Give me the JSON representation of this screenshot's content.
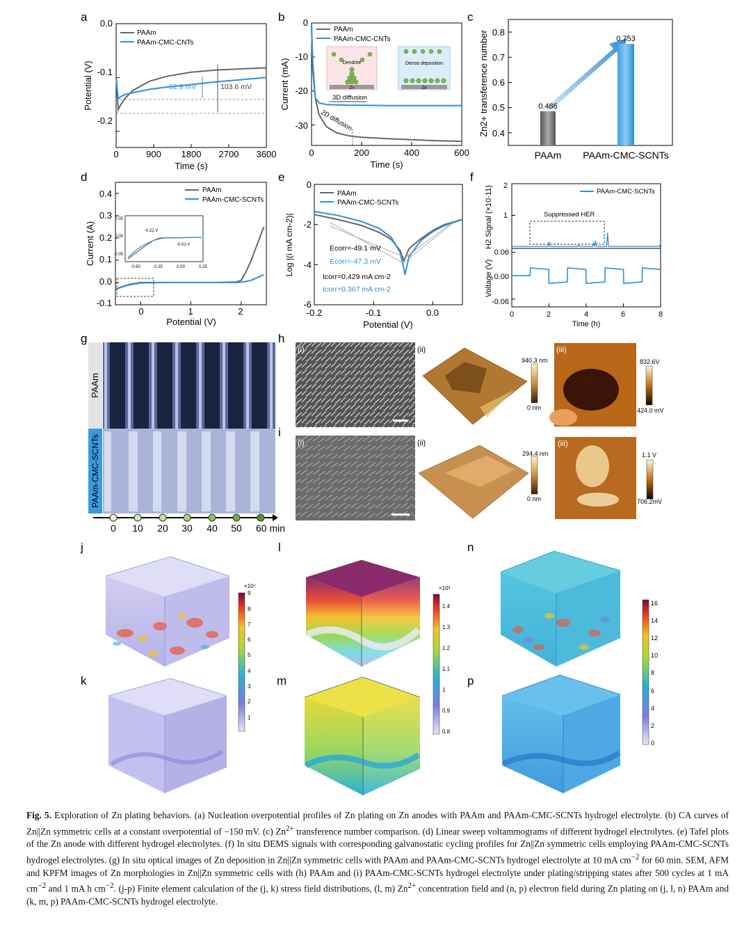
{
  "figure": {
    "panels": {
      "a": {
        "letter": "a",
        "legend": [
          "PAAm",
          "PAAm-CMC-CNTs"
        ],
        "annotations": [
          "52.9 mV",
          "103.6 mV"
        ],
        "xlabel": "Time (s)",
        "ylabel": "Potential (V)",
        "xticks": [
          "0",
          "900",
          "1800",
          "2700",
          "3600"
        ],
        "yticks": [
          "0.0",
          "-0.1",
          "-0.2"
        ]
      },
      "b": {
        "letter": "b",
        "legend": [
          "PAAm",
          "PAAm-CMC-CNTs"
        ],
        "annotations": [
          "3D diffusion",
          "2D diffusion",
          "Dendrite",
          "Dense deposition",
          "Zn",
          "Zn"
        ],
        "xlabel": "Time (s)",
        "ylabel": "Current (mA)",
        "xticks": [
          "0",
          "200",
          "400",
          "600"
        ],
        "yticks": [
          "0",
          "-10",
          "-20",
          "-30"
        ]
      },
      "c": {
        "letter": "c",
        "ylabel": "Zn2+ transference number",
        "yticks": [
          "0.8",
          "0.7",
          "0.6",
          "0.5",
          "0.4"
        ]
      },
      "d": {
        "letter": "d",
        "legend": [
          "PAAm",
          "PAAm-CMC-SCNTs"
        ],
        "xlabel": "Potential (V)",
        "ylabel": "Current (A)",
        "xticks": [
          "0",
          "1",
          "2"
        ],
        "yticks": [
          "0.4",
          "0.3",
          "0.2",
          "0.1",
          "0.0",
          "-0.1"
        ],
        "inset_xticks": [
          "-0.50",
          "-0.25",
          "0.00",
          "0.25"
        ],
        "inset_yticks": [
          "0.05",
          "0.00",
          "-0.05"
        ],
        "inset_annotations": [
          "-0.22 V",
          "-0.01 V"
        ]
      },
      "e": {
        "letter": "e",
        "legend": [
          "PAAm",
          "PAAm-CMC-SCNTs"
        ],
        "xlabel": "Potential (V)",
        "ylabel": "Log |(i mA cm-2)|",
        "xticks": [
          "-0.2",
          "-0.1",
          "0.0"
        ],
        "yticks": [
          "0",
          "-2",
          "-4",
          "-6"
        ],
        "annotations": [
          "Ecorr=-49.1 mV",
          "Ecorr=-47.3 mV",
          "Icorr=0.429 mA cm-2",
          "Icorr=0.367 mA cm-2"
        ]
      },
      "f": {
        "letter": "f",
        "legend": [
          "PAAm-CMC-SCNTs"
        ],
        "annotation": "Suppressed HER",
        "ylabel_top": "H2 Signal (×10-11)",
        "ylabel_bottom": "Voltage (V)",
        "xlabel": "Time (h)",
        "xticks": [
          "0",
          "2",
          "4",
          "6",
          "8"
        ],
        "yticks_top": [
          "2",
          "1"
        ],
        "yticks_bottom": [
          "0.06",
          "0.00",
          "-0.06"
        ]
      },
      "g": {
        "letter": "g",
        "rows": [
          "PAAm",
          "PAAm-CMC-SCNTs"
        ],
        "timeline": [
          "0",
          "10",
          "20",
          "30",
          "40",
          "50",
          "60 min"
        ]
      },
      "h": {
        "letter": "h",
        "subs": [
          "(i)",
          "(ii)",
          "(iii)"
        ],
        "afm_scale": [
          "940.3 nm",
          "0 nm"
        ],
        "kpfm_scale": [
          "832.6V",
          "424.0 mV"
        ]
      },
      "i": {
        "letter": "i",
        "subs": [
          "(i)",
          "(ii)",
          "(iii)"
        ],
        "afm_scale": [
          "294.4 nm",
          "0 nm"
        ],
        "kpfm_scale": [
          "1.1 V",
          "706.2mV"
        ]
      },
      "jk": {
        "letters": [
          "j",
          "k"
        ],
        "exponent": "×10⁴",
        "ticks": [
          "9",
          "8",
          "7",
          "6",
          "5",
          "4",
          "3",
          "2",
          "1"
        ]
      },
      "lm": {
        "letters": [
          "l",
          "m"
        ],
        "exponent": "×10³",
        "ticks": [
          "1.4",
          "1.3",
          "1.2",
          "1.1",
          "1",
          "0.9",
          "0.8"
        ]
      },
      "np": {
        "letters": [
          "n",
          "p"
        ],
        "ticks": [
          "16",
          "14",
          "12",
          "10",
          "8",
          "6",
          "4",
          "2",
          "0"
        ]
      }
    }
  },
  "chart_data": [
    {
      "panel": "a",
      "type": "line",
      "x": [
        0,
        50,
        100,
        200,
        400,
        800,
        1200,
        1800,
        2400,
        3000,
        3600
      ],
      "series": [
        {
          "name": "PAAm",
          "values": [
            -0.1,
            -0.16,
            -0.152,
            -0.14,
            -0.124,
            -0.107,
            -0.098,
            -0.09,
            -0.086,
            -0.084,
            -0.082
          ]
        },
        {
          "name": "PAAm-CMC-CNTs",
          "values": [
            -0.1,
            -0.14,
            -0.136,
            -0.132,
            -0.128,
            -0.122,
            -0.118,
            -0.113,
            -0.108,
            -0.104,
            -0.1
          ]
        }
      ],
      "xlim": [
        0,
        3600
      ],
      "ylim": [
        -0.23,
        0.0
      ]
    },
    {
      "panel": "b",
      "type": "line",
      "x": [
        0,
        5,
        15,
        30,
        60,
        100,
        150,
        200,
        300,
        400,
        500,
        600
      ],
      "series": [
        {
          "name": "PAAm",
          "values": [
            -0.5,
            -12,
            -22,
            -27,
            -30.5,
            -32.3,
            -33.2,
            -33.6,
            -34.0,
            -34.3,
            -34.6,
            -34.8
          ]
        },
        {
          "name": "PAAm-CMC-CNTs",
          "values": [
            -0.5,
            -14,
            -22,
            -23.5,
            -24.0,
            -24.1,
            -24.2,
            -24.2,
            -24.3,
            -24.3,
            -24.3,
            -24.3
          ]
        }
      ],
      "xlim": [
        0,
        600
      ],
      "ylim": [
        -36,
        0
      ]
    },
    {
      "panel": "c",
      "type": "bar",
      "categories": [
        "PAAm",
        "PAAm-CMC-SCNTs"
      ],
      "values": [
        0.486,
        0.753
      ],
      "ylim": [
        0.35,
        0.85
      ]
    },
    {
      "panel": "d",
      "type": "line",
      "x": [
        -0.5,
        -0.25,
        0,
        0.5,
        1.0,
        1.5,
        1.9,
        2.0,
        2.1,
        2.2,
        2.3,
        2.45
      ],
      "series": [
        {
          "name": "PAAm",
          "values": [
            -0.03,
            -0.01,
            0.0,
            0.0,
            0.0,
            0.0,
            0.002,
            0.01,
            0.05,
            0.1,
            0.16,
            0.25
          ]
        },
        {
          "name": "PAAm-CMC-SCNTs",
          "values": [
            -0.03,
            -0.012,
            -0.002,
            0.0,
            0.0,
            0.0,
            0.0,
            0.002,
            0.005,
            0.01,
            0.02,
            0.035
          ]
        }
      ],
      "xlim": [
        -0.5,
        2.5
      ],
      "ylim": [
        -0.1,
        0.45
      ]
    },
    {
      "panel": "e",
      "type": "line",
      "x": [
        -0.2,
        -0.16,
        -0.12,
        -0.09,
        -0.07,
        -0.055,
        -0.049,
        -0.047,
        -0.04,
        -0.02,
        0.0,
        0.02,
        0.05
      ],
      "series": [
        {
          "name": "PAAm",
          "values": [
            -1.5,
            -1.75,
            -2.05,
            -2.4,
            -2.75,
            -3.3,
            -3.8,
            -3.7,
            -3.2,
            -2.7,
            -2.3,
            -2.0,
            -1.75
          ]
        },
        {
          "name": "PAAm-CMC-SCNTs",
          "values": [
            -1.35,
            -1.55,
            -1.85,
            -2.2,
            -2.65,
            -3.4,
            -4.2,
            -4.5,
            -3.6,
            -2.8,
            -2.35,
            -2.05,
            -1.75
          ]
        }
      ],
      "xlim": [
        -0.2,
        0.05
      ],
      "ylim": [
        -6,
        0
      ]
    },
    {
      "panel": "f",
      "type": "line",
      "x_hours": [
        0,
        8
      ],
      "h2_baseline": 0.02,
      "voltage_amplitude": 0.02,
      "cycle_hours": 2,
      "xlim": [
        0,
        8
      ]
    }
  ]
}
